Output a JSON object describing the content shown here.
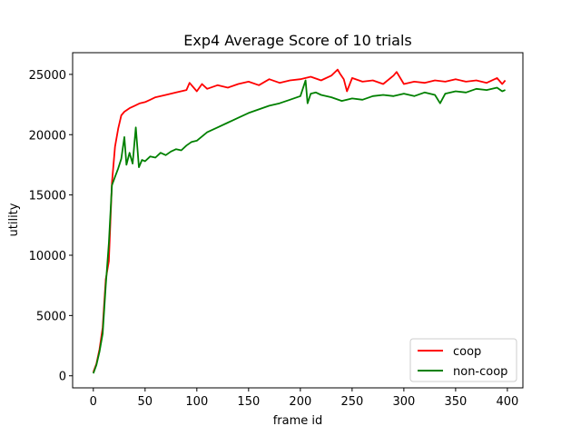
{
  "chart_data": {
    "type": "line",
    "title": "Exp4 Average Score of 10 trials",
    "xlabel": "frame id",
    "ylabel": "utility",
    "xlim": [
      -20,
      415
    ],
    "ylim": [
      -1000,
      26800
    ],
    "xticks": [
      0,
      50,
      100,
      150,
      200,
      250,
      300,
      350,
      400
    ],
    "yticks": [
      0,
      5000,
      10000,
      15000,
      20000,
      25000
    ],
    "grid": false,
    "legend_position": "lower right",
    "series": [
      {
        "name": "coop",
        "color": "#ff0000",
        "x": [
          0,
          3,
          6,
          9,
          12,
          15,
          18,
          21,
          24,
          27,
          30,
          35,
          40,
          45,
          50,
          55,
          60,
          70,
          80,
          90,
          93,
          100,
          105,
          110,
          120,
          130,
          140,
          150,
          160,
          170,
          180,
          190,
          200,
          210,
          220,
          230,
          236,
          238,
          242,
          245,
          250,
          260,
          270,
          280,
          290,
          293,
          300,
          310,
          320,
          330,
          340,
          350,
          360,
          370,
          380,
          390,
          395,
          398
        ],
        "y": [
          300,
          1000,
          2200,
          4000,
          8000,
          9500,
          16000,
          19000,
          20500,
          21600,
          21900,
          22200,
          22400,
          22600,
          22700,
          22900,
          23100,
          23300,
          23500,
          23700,
          24300,
          23600,
          24200,
          23800,
          24100,
          23900,
          24200,
          24400,
          24100,
          24600,
          24300,
          24500,
          24600,
          24800,
          24500,
          24900,
          25400,
          25100,
          24600,
          23600,
          24700,
          24400,
          24500,
          24200,
          24900,
          25200,
          24200,
          24400,
          24300,
          24500,
          24400,
          24600,
          24400,
          24500,
          24300,
          24700,
          24200,
          24500
        ]
      },
      {
        "name": "non-coop",
        "color": "#008000",
        "x": [
          0,
          3,
          6,
          9,
          12,
          15,
          18,
          21,
          24,
          27,
          30,
          32,
          35,
          38,
          41,
          44,
          47,
          50,
          55,
          60,
          65,
          70,
          75,
          80,
          85,
          90,
          95,
          100,
          110,
          120,
          130,
          140,
          150,
          160,
          170,
          180,
          190,
          200,
          205,
          207,
          210,
          215,
          220,
          230,
          240,
          250,
          260,
          270,
          280,
          290,
          300,
          310,
          320,
          330,
          335,
          340,
          350,
          360,
          370,
          380,
          390,
          395,
          398
        ],
        "y": [
          200,
          900,
          2000,
          3500,
          7500,
          11000,
          15800,
          16500,
          17200,
          18000,
          19800,
          17500,
          18500,
          17600,
          20600,
          17300,
          17900,
          17800,
          18200,
          18100,
          18500,
          18300,
          18600,
          18800,
          18700,
          19100,
          19400,
          19500,
          20200,
          20600,
          21000,
          21400,
          21800,
          22100,
          22400,
          22600,
          22900,
          23200,
          24500,
          22600,
          23400,
          23500,
          23300,
          23100,
          22800,
          23000,
          22900,
          23200,
          23300,
          23200,
          23400,
          23200,
          23500,
          23300,
          22600,
          23400,
          23600,
          23500,
          23800,
          23700,
          23900,
          23600,
          23700
        ]
      }
    ]
  }
}
